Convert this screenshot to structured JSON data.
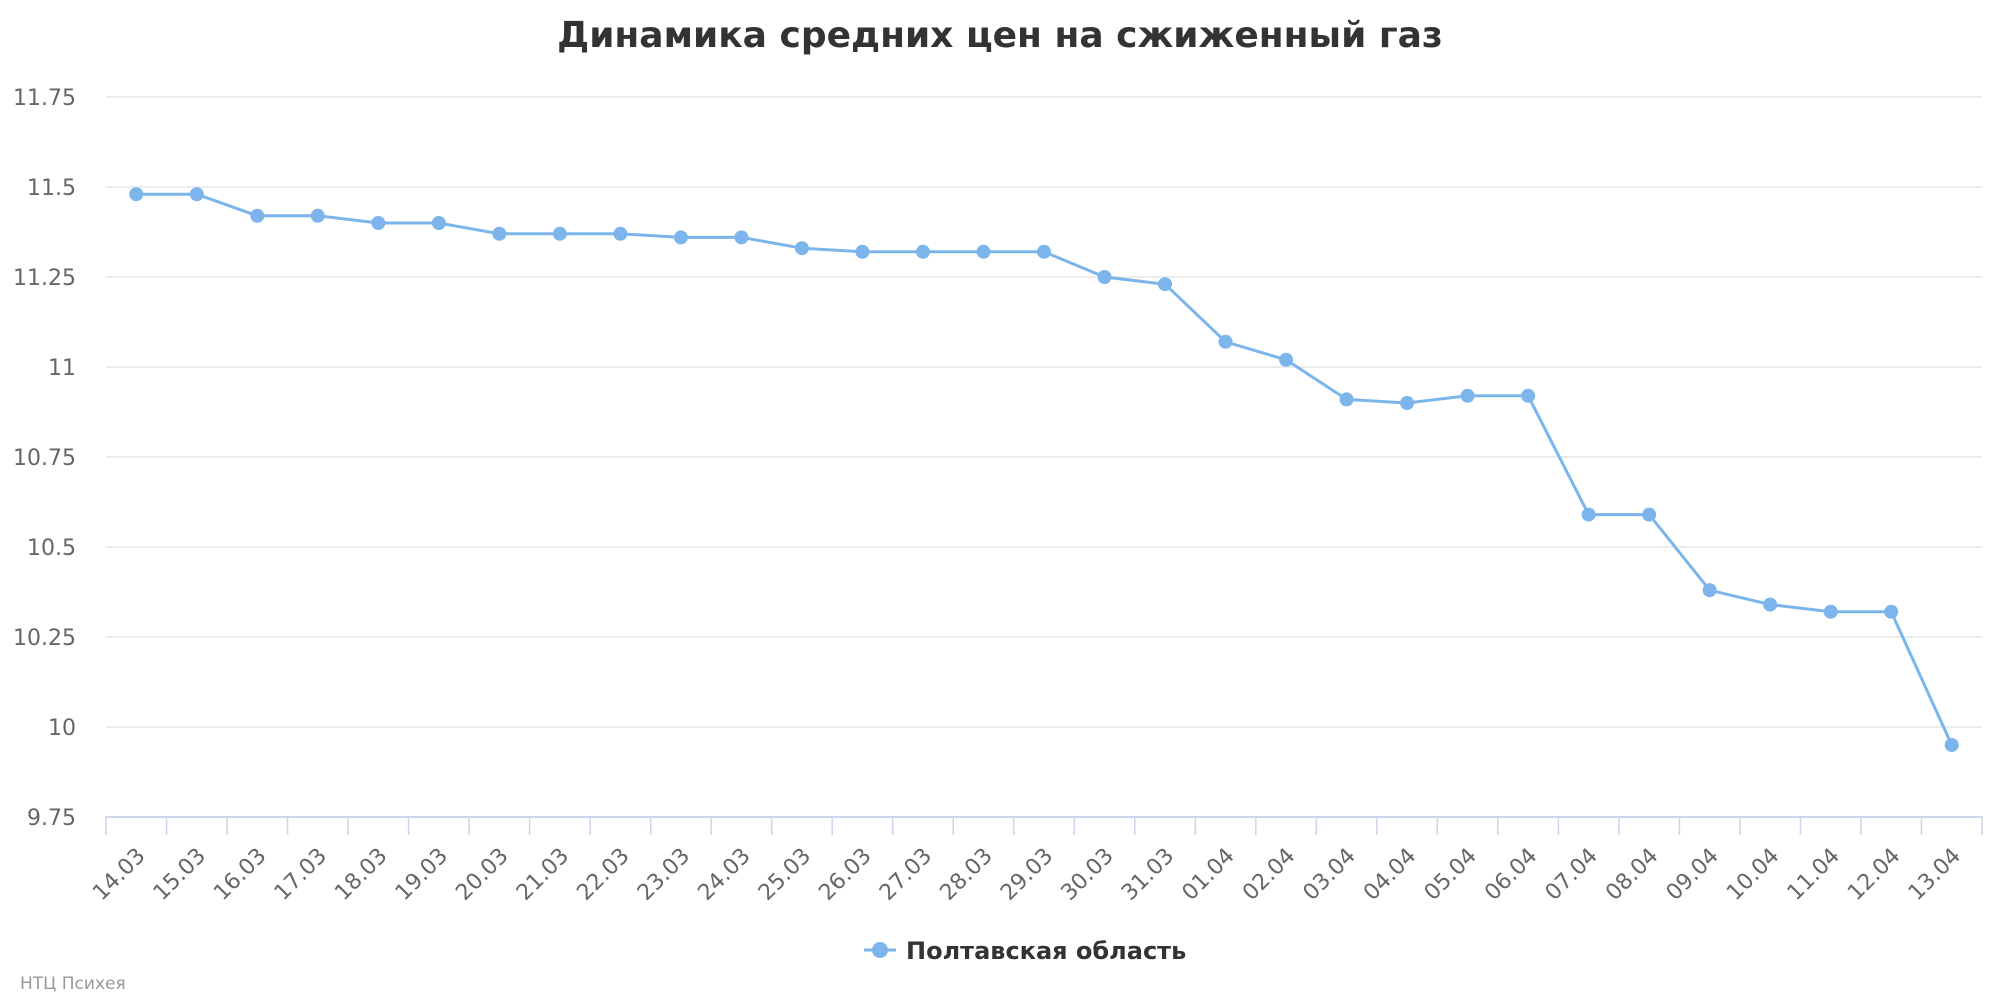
{
  "chart_data": {
    "type": "line",
    "title": "Динамика средних цен на сжиженный газ",
    "xlabel": "",
    "ylabel": "",
    "ylim": [
      9.75,
      11.75
    ],
    "yticks": [
      "9.75",
      "10",
      "10.25",
      "10.5",
      "10.75",
      "11",
      "11.25",
      "11.5",
      "11.75"
    ],
    "categories": [
      "14.03",
      "15.03",
      "16.03",
      "17.03",
      "18.03",
      "19.03",
      "20.03",
      "21.03",
      "22.03",
      "23.03",
      "24.03",
      "25.03",
      "26.03",
      "27.03",
      "28.03",
      "29.03",
      "30.03",
      "31.03",
      "01.04",
      "02.04",
      "03.04",
      "04.04",
      "05.04",
      "06.04",
      "07.04",
      "08.04",
      "09.04",
      "10.04",
      "11.04",
      "12.04",
      "13.04"
    ],
    "series": [
      {
        "name": "Полтавская область",
        "color": "#7cb5ec",
        "values": [
          11.48,
          11.48,
          11.42,
          11.42,
          11.4,
          11.4,
          11.37,
          11.37,
          11.37,
          11.36,
          11.36,
          11.33,
          11.32,
          11.32,
          11.32,
          11.32,
          11.25,
          11.23,
          11.07,
          11.02,
          10.91,
          10.9,
          10.92,
          10.92,
          10.59,
          10.59,
          10.38,
          10.34,
          10.32,
          10.32,
          9.95
        ]
      }
    ],
    "grid": true,
    "legend": "bottom-center"
  },
  "credit": "НТЦ Психея"
}
